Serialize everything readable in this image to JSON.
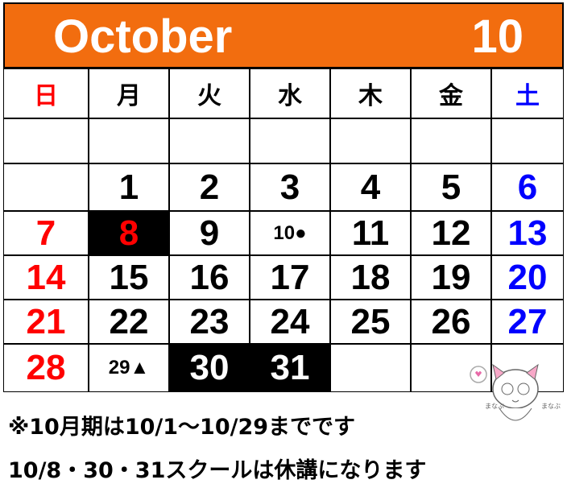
{
  "header": {
    "month_name": "October",
    "month_number": "10"
  },
  "weekdays": [
    "日",
    "月",
    "火",
    "水",
    "木",
    "金",
    "土"
  ],
  "weeks": [
    [
      null,
      null,
      null,
      null,
      null,
      null,
      null
    ],
    [
      null,
      {
        "text": "1"
      },
      {
        "text": "2"
      },
      {
        "text": "3"
      },
      {
        "text": "4"
      },
      {
        "text": "5"
      },
      {
        "text": "6"
      }
    ],
    [
      {
        "text": "7"
      },
      {
        "text": "8",
        "closed": true
      },
      {
        "text": "9"
      },
      {
        "text": "10●"
      },
      {
        "text": "11"
      },
      {
        "text": "12"
      },
      {
        "text": "13"
      }
    ],
    [
      {
        "text": "14"
      },
      {
        "text": "15"
      },
      {
        "text": "16"
      },
      {
        "text": "17"
      },
      {
        "text": "18"
      },
      {
        "text": "19"
      },
      {
        "text": "20"
      }
    ],
    [
      {
        "text": "21"
      },
      {
        "text": "22"
      },
      {
        "text": "23"
      },
      {
        "text": "24"
      },
      {
        "text": "25"
      },
      {
        "text": "26"
      },
      {
        "text": "27"
      }
    ],
    [
      {
        "text": "28"
      },
      {
        "text": "29▲"
      },
      {
        "text": "30",
        "closed": true
      },
      {
        "text": "31",
        "closed": true
      },
      null,
      null,
      null
    ]
  ],
  "notes": [
    "※10月期は10/1～10/29までです",
    "10/8・30・31スクールは休講になります"
  ]
}
